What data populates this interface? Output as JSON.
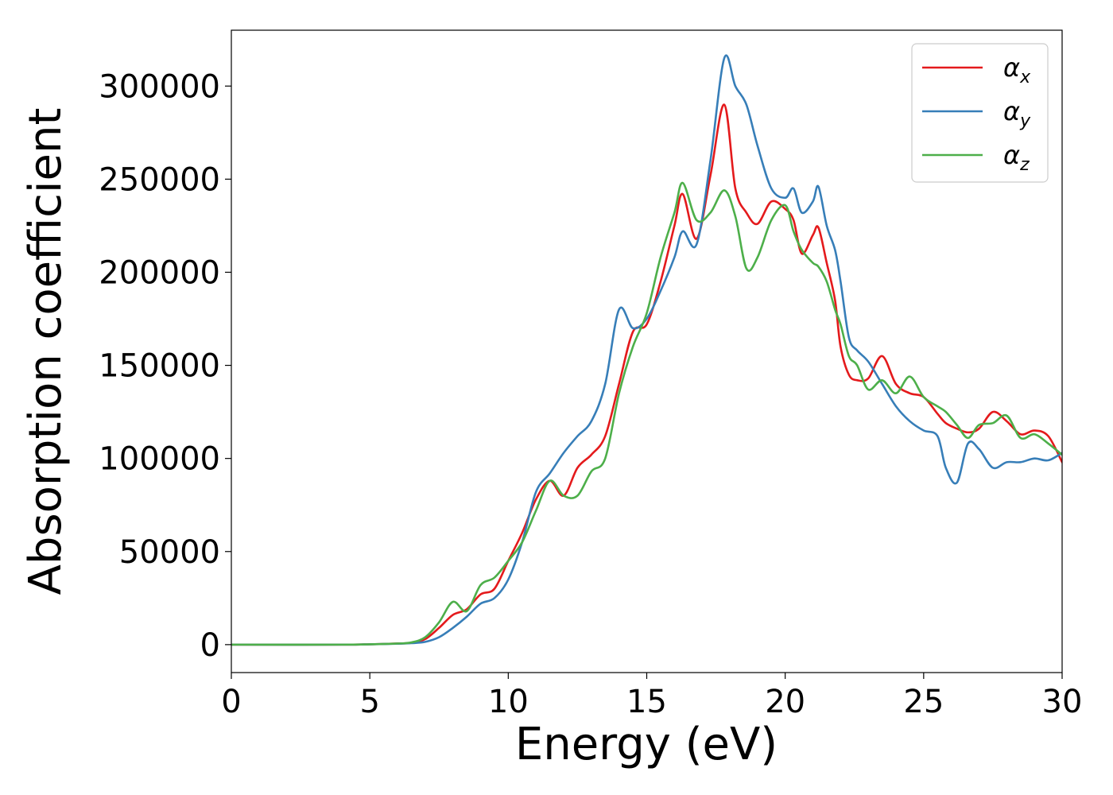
{
  "chart_data": {
    "type": "line",
    "title": "",
    "xlabel": "Energy (eV)",
    "ylabel": "Absorption coefficient",
    "xlim": [
      0,
      30
    ],
    "ylim": [
      -15000,
      330000
    ],
    "xticks": [
      0,
      5,
      10,
      15,
      20,
      25,
      30
    ],
    "xtick_labels": [
      "0",
      "5",
      "10",
      "15",
      "20",
      "25",
      "30"
    ],
    "yticks": [
      0,
      50000,
      100000,
      150000,
      200000,
      250000,
      300000
    ],
    "ytick_labels": [
      "0",
      "50000",
      "100000",
      "150000",
      "200000",
      "250000",
      "300000"
    ],
    "grid": false,
    "legend_position": "top-right",
    "x": [
      0,
      4,
      5,
      6,
      6.5,
      7,
      7.5,
      8,
      8.5,
      9,
      9.5,
      10,
      10.5,
      11,
      11.5,
      12,
      12.5,
      13,
      13.5,
      14,
      14.5,
      15,
      15.5,
      16,
      16.3,
      16.8,
      17.3,
      17.8,
      18.2,
      18.6,
      19,
      19.5,
      20,
      20.3,
      20.6,
      21,
      21.2,
      21.5,
      21.8,
      22,
      22.3,
      22.6,
      23,
      23.5,
      24,
      24.5,
      25,
      25.5,
      25.8,
      26.2,
      26.6,
      27,
      27.5,
      28,
      28.5,
      29,
      29.5,
      30
    ],
    "series": [
      {
        "name": "α",
        "subscript": "x",
        "color": "#e41a1c",
        "values": [
          0,
          0,
          200,
          600,
          1000,
          3000,
          9000,
          16000,
          19000,
          27000,
          30000,
          45000,
          60000,
          78000,
          88000,
          80000,
          95000,
          102000,
          112000,
          140000,
          168000,
          172000,
          195000,
          225000,
          242000,
          218000,
          252000,
          290000,
          245000,
          232000,
          226000,
          238000,
          234000,
          228000,
          210000,
          220000,
          224000,
          205000,
          185000,
          160000,
          145000,
          142000,
          143000,
          155000,
          140000,
          135000,
          133000,
          124000,
          119000,
          116000,
          114000,
          116000,
          125000,
          120000,
          113000,
          115000,
          112000,
          98000
        ]
      },
      {
        "name": "α",
        "subscript": "y",
        "color": "#377eb8",
        "values": [
          0,
          0,
          200,
          500,
          800,
          1500,
          4000,
          9000,
          15000,
          22000,
          25000,
          35000,
          55000,
          82000,
          92000,
          103000,
          112000,
          120000,
          140000,
          180000,
          170000,
          175000,
          190000,
          208000,
          222000,
          215000,
          260000,
          315000,
          300000,
          290000,
          268000,
          245000,
          240000,
          245000,
          232000,
          238000,
          246000,
          225000,
          212000,
          195000,
          165000,
          158000,
          152000,
          140000,
          128000,
          120000,
          115000,
          112000,
          95000,
          87000,
          108000,
          105000,
          95000,
          98000,
          98000,
          100000,
          99000,
          103000
        ]
      },
      {
        "name": "α",
        "subscript": "z",
        "color": "#4daf4a",
        "values": [
          0,
          0,
          200,
          600,
          1200,
          4000,
          12000,
          23000,
          18000,
          32000,
          36000,
          45000,
          55000,
          72000,
          88000,
          80000,
          80000,
          93000,
          100000,
          135000,
          160000,
          178000,
          208000,
          232000,
          248000,
          228000,
          232000,
          244000,
          230000,
          202000,
          208000,
          228000,
          236000,
          222000,
          212000,
          205000,
          203000,
          195000,
          180000,
          172000,
          155000,
          150000,
          137000,
          142000,
          135000,
          144000,
          133000,
          128000,
          125000,
          118000,
          111000,
          118000,
          119000,
          123000,
          111000,
          113000,
          108000,
          102000
        ]
      }
    ]
  }
}
